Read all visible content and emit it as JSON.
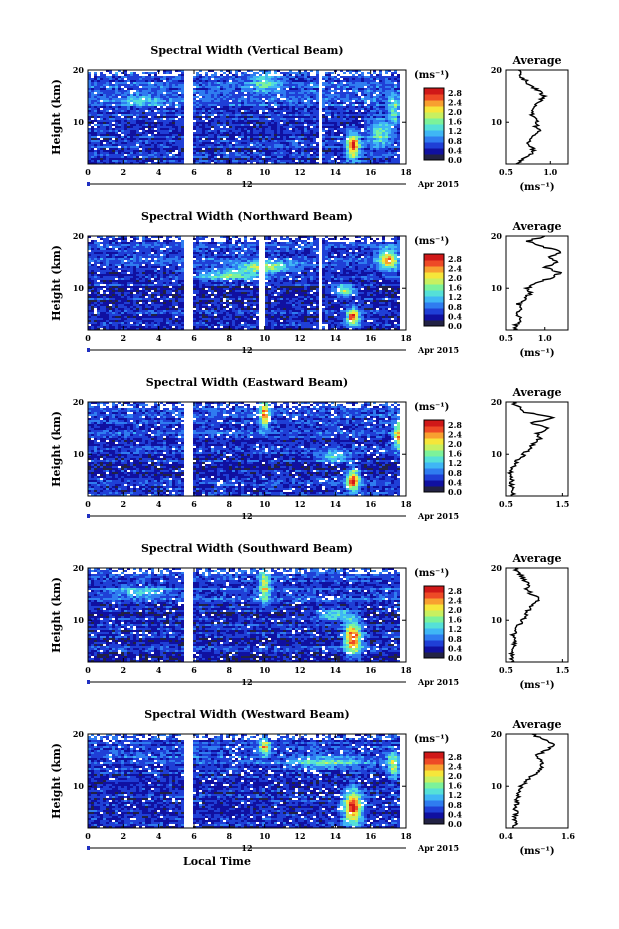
{
  "figure": {
    "xlabel": "Local Time",
    "date_marker": "12",
    "month_year": "Apr 2015"
  },
  "colorbar": {
    "unit": "(ms⁻¹)",
    "ticks": [
      "0.0",
      "0.4",
      "0.8",
      "1.2",
      "1.6",
      "2.0",
      "2.4",
      "2.8"
    ],
    "range": [
      0.0,
      3.0
    ],
    "colors": [
      "#222244",
      "#1010a0",
      "#1f3fd6",
      "#2f7cf0",
      "#3fb6f5",
      "#55e0d8",
      "#7cf29a",
      "#c8f060",
      "#f6e63a",
      "#f8a030",
      "#ee4a26",
      "#d01818"
    ]
  },
  "chart_data": [
    {
      "type": "heatmap",
      "title": "Spectral Width (Vertical Beam)",
      "ylabel": "Height (km)",
      "xlim": [
        0,
        18
      ],
      "ylim": [
        2,
        20
      ],
      "xticks": [
        0,
        2,
        4,
        6,
        8,
        10,
        12,
        14,
        16,
        18
      ],
      "yticks": [
        10,
        20
      ],
      "gaps": [
        [
          5.5,
          6.0
        ],
        [
          13.0,
          13.3
        ]
      ],
      "background": 0.55,
      "hotspots": [
        {
          "x": 15.0,
          "y": 5.5,
          "value": 2.8,
          "sx": 0.35,
          "sy": 2.2
        },
        {
          "x": 16.5,
          "y": 8.0,
          "value": 1.6,
          "sx": 0.6,
          "sy": 2.5
        },
        {
          "x": 17.3,
          "y": 12.0,
          "value": 1.5,
          "sx": 0.3,
          "sy": 3.0
        },
        {
          "x": 10.0,
          "y": 17.5,
          "value": 1.4,
          "sx": 0.8,
          "sy": 1.5
        },
        {
          "x": 3.0,
          "y": 14.0,
          "value": 1.2,
          "sx": 1.0,
          "sy": 1.0
        }
      ],
      "average": {
        "title": "Average",
        "xlabel": "(ms⁻¹)",
        "xlim": [
          0.5,
          1.2
        ],
        "xtick_labels": [
          "0.5",
          "1.0"
        ],
        "xticks": [
          0.5,
          1.0
        ],
        "height": [
          2,
          3,
          4,
          5,
          6,
          7,
          8,
          9,
          10,
          11,
          12,
          13,
          14,
          15,
          16,
          17,
          18,
          19,
          20
        ],
        "value": [
          0.62,
          0.7,
          0.78,
          0.82,
          0.74,
          0.78,
          0.88,
          0.84,
          0.86,
          0.8,
          0.78,
          0.82,
          0.9,
          0.92,
          0.88,
          0.76,
          0.72,
          0.66,
          0.64
        ]
      }
    },
    {
      "type": "heatmap",
      "title": "Spectral Width (Northward Beam)",
      "ylabel": "Height (km)",
      "xlim": [
        0,
        18
      ],
      "ylim": [
        2,
        20
      ],
      "xticks": [
        0,
        2,
        4,
        6,
        8,
        10,
        12,
        14,
        16,
        18
      ],
      "yticks": [
        10,
        20
      ],
      "gaps": [
        [
          5.5,
          6.0
        ],
        [
          9.7,
          10.0
        ],
        [
          13.1,
          13.3
        ]
      ],
      "background": 0.5,
      "hotspots": [
        {
          "x": 15.0,
          "y": 4.5,
          "value": 2.8,
          "sx": 0.35,
          "sy": 1.5
        },
        {
          "x": 14.5,
          "y": 9.5,
          "value": 1.9,
          "sx": 0.6,
          "sy": 1.0
        },
        {
          "x": 17.0,
          "y": 15.5,
          "value": 2.2,
          "sx": 0.5,
          "sy": 2.0
        },
        {
          "x": 10.0,
          "y": 14.0,
          "value": 1.8,
          "sx": 1.5,
          "sy": 1.0
        },
        {
          "x": 8.0,
          "y": 12.5,
          "value": 1.5,
          "sx": 2.0,
          "sy": 1.0
        }
      ],
      "average": {
        "title": "Average",
        "xlabel": "(ms⁻¹)",
        "xlim": [
          0.5,
          1.3
        ],
        "xtick_labels": [
          "0.5",
          "1.0"
        ],
        "xticks": [
          0.5,
          1.0
        ],
        "height": [
          2,
          3,
          4,
          5,
          6,
          7,
          8,
          9,
          10,
          11,
          12,
          13,
          14,
          15,
          16,
          17,
          18,
          19,
          20
        ],
        "value": [
          0.6,
          0.62,
          0.7,
          0.64,
          0.7,
          0.66,
          0.74,
          0.82,
          0.78,
          0.86,
          1.1,
          1.2,
          1.0,
          1.15,
          1.05,
          1.22,
          0.95,
          0.78,
          1.0
        ]
      }
    },
    {
      "type": "heatmap",
      "title": "Spectral Width (Eastward Beam)",
      "ylabel": "Height (km)",
      "xlim": [
        0,
        18
      ],
      "ylim": [
        2,
        20
      ],
      "xticks": [
        0,
        2,
        4,
        6,
        8,
        10,
        12,
        14,
        16,
        18
      ],
      "yticks": [
        10,
        20
      ],
      "gaps": [
        [
          5.5,
          6.0
        ]
      ],
      "background": 0.5,
      "hotspots": [
        {
          "x": 15.0,
          "y": 5.0,
          "value": 2.8,
          "sx": 0.35,
          "sy": 2.0
        },
        {
          "x": 10.0,
          "y": 17.5,
          "value": 2.4,
          "sx": 0.25,
          "sy": 2.5
        },
        {
          "x": 17.6,
          "y": 13.5,
          "value": 2.2,
          "sx": 0.3,
          "sy": 2.5
        },
        {
          "x": 14.0,
          "y": 9.5,
          "value": 1.4,
          "sx": 1.0,
          "sy": 1.0
        }
      ],
      "average": {
        "title": "Average",
        "xlabel": "",
        "xlim": [
          0.5,
          1.6
        ],
        "xtick_labels": [
          "0.5",
          "1.5"
        ],
        "xticks": [
          0.5,
          1.5
        ],
        "height": [
          2,
          3,
          4,
          5,
          6,
          7,
          8,
          9,
          10,
          11,
          12,
          13,
          14,
          15,
          16,
          17,
          18,
          19,
          20
        ],
        "value": [
          0.6,
          0.62,
          0.58,
          0.62,
          0.58,
          0.6,
          0.66,
          0.72,
          0.82,
          0.9,
          0.98,
          1.1,
          1.05,
          1.25,
          0.95,
          1.35,
          0.85,
          0.72,
          0.62
        ]
      }
    },
    {
      "type": "heatmap",
      "title": "Spectral Width (Southward Beam)",
      "ylabel": "Height (km)",
      "xlim": [
        0,
        18
      ],
      "ylim": [
        2,
        20
      ],
      "xticks": [
        0,
        2,
        4,
        6,
        8,
        10,
        12,
        14,
        16,
        18
      ],
      "yticks": [
        10,
        20
      ],
      "gaps": [
        [
          5.5,
          6.0
        ]
      ],
      "background": 0.5,
      "hotspots": [
        {
          "x": 15.0,
          "y": 6.5,
          "value": 2.8,
          "sx": 0.45,
          "sy": 3.0
        },
        {
          "x": 10.0,
          "y": 16.5,
          "value": 2.0,
          "sx": 0.3,
          "sy": 3.0
        },
        {
          "x": 14.0,
          "y": 11.0,
          "value": 1.6,
          "sx": 1.0,
          "sy": 1.0
        },
        {
          "x": 3.0,
          "y": 15.5,
          "value": 1.2,
          "sx": 1.5,
          "sy": 1.0
        }
      ],
      "average": {
        "title": "Average",
        "xlabel": "(ms⁻¹)",
        "xlim": [
          0.5,
          1.6
        ],
        "xtick_labels": [
          "0.5",
          "1.5"
        ],
        "xticks": [
          0.5,
          1.5
        ],
        "height": [
          2,
          3,
          4,
          5,
          6,
          7,
          8,
          9,
          10,
          11,
          12,
          13,
          14,
          15,
          16,
          17,
          18,
          19,
          20
        ],
        "value": [
          0.6,
          0.62,
          0.6,
          0.62,
          0.66,
          0.62,
          0.68,
          0.72,
          0.8,
          0.86,
          0.9,
          1.0,
          1.1,
          0.95,
          0.85,
          0.9,
          0.8,
          0.72,
          0.66
        ]
      }
    },
    {
      "type": "heatmap",
      "title": "Spectral Width (Westward Beam)",
      "ylabel": "Height (km)",
      "xlim": [
        0,
        18
      ],
      "ylim": [
        2,
        20
      ],
      "xticks": [
        0,
        2,
        4,
        6,
        8,
        10,
        12,
        14,
        16,
        18
      ],
      "yticks": [
        10,
        20
      ],
      "gaps": [
        [
          5.5,
          6.0
        ]
      ],
      "background": 0.5,
      "hotspots": [
        {
          "x": 15.0,
          "y": 6.0,
          "value": 2.8,
          "sx": 0.5,
          "sy": 3.0
        },
        {
          "x": 10.0,
          "y": 17.5,
          "value": 2.2,
          "sx": 0.3,
          "sy": 1.5
        },
        {
          "x": 13.5,
          "y": 14.5,
          "value": 1.4,
          "sx": 2.0,
          "sy": 1.0
        },
        {
          "x": 17.3,
          "y": 14.0,
          "value": 1.8,
          "sx": 0.3,
          "sy": 2.5
        }
      ],
      "average": {
        "title": "Average",
        "xlabel": "(ms⁻¹)",
        "xlim": [
          0.4,
          1.6
        ],
        "xtick_labels": [
          "0.4",
          "1.6"
        ],
        "xticks": [
          0.4,
          1.6
        ],
        "height": [
          2,
          3,
          4,
          5,
          6,
          7,
          8,
          9,
          10,
          11,
          12,
          13,
          14,
          15,
          16,
          17,
          18,
          19,
          20
        ],
        "value": [
          0.55,
          0.58,
          0.56,
          0.6,
          0.58,
          0.62,
          0.62,
          0.66,
          0.7,
          0.78,
          0.9,
          1.05,
          1.1,
          1.05,
          1.0,
          1.2,
          1.35,
          1.1,
          0.9
        ]
      }
    }
  ]
}
